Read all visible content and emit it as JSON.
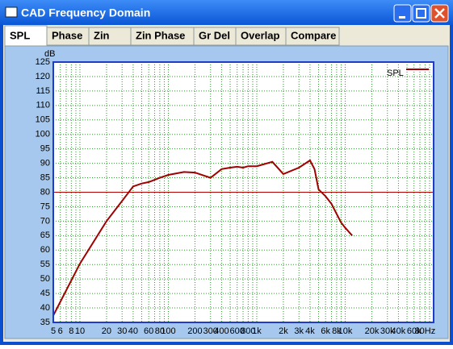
{
  "window": {
    "title": "CAD Frequency Domain",
    "tabs": [
      "SPL",
      "Phase",
      "Zin",
      "Zin Phase",
      "Gr Del",
      "Overlap",
      "Compare"
    ]
  },
  "chart_data": {
    "type": "line",
    "y_label": "dB",
    "x_scale": "log",
    "grid": true,
    "legend": "top-right",
    "xlim": [
      5,
      100000
    ],
    "ylim": [
      35,
      125
    ],
    "yticks": [
      35,
      40,
      45,
      50,
      55,
      60,
      65,
      70,
      75,
      80,
      85,
      90,
      95,
      100,
      105,
      110,
      115,
      120,
      125
    ],
    "xticks": [
      5,
      6,
      8,
      10,
      20,
      30,
      40,
      60,
      80,
      100,
      200,
      300,
      400,
      600,
      800,
      {
        "value": 1000,
        "label": "1k"
      },
      {
        "value": 2000,
        "label": "2k"
      },
      {
        "value": 3000,
        "label": "3k"
      },
      {
        "value": 4000,
        "label": "4k"
      },
      {
        "value": 6000,
        "label": "6k"
      },
      {
        "value": 8000,
        "label": "8k"
      },
      {
        "value": 10000,
        "label": "10k"
      },
      {
        "value": 20000,
        "label": "20k"
      },
      {
        "value": 30000,
        "label": "30k"
      },
      {
        "value": 40000,
        "label": "40k"
      },
      {
        "value": 60000,
        "label": "60k"
      },
      {
        "value": 80000,
        "label": "80Hz"
      }
    ],
    "x_minor_grid": [
      7,
      9,
      50,
      70,
      90,
      500,
      700,
      900,
      5000,
      7000,
      9000,
      50000,
      70000,
      90000
    ],
    "reference_line": {
      "value": 80,
      "color": "#b00000"
    },
    "x": [
      5,
      10,
      20,
      30,
      40,
      50,
      60,
      80,
      100,
      150,
      200,
      300,
      400,
      500,
      600,
      700,
      800,
      1000,
      1500,
      2000,
      3000,
      4000,
      4500,
      5000,
      6000,
      7000,
      8000,
      9000,
      10000,
      12000
    ],
    "series": [
      {
        "name": "SPL",
        "color": "#a00000",
        "values": [
          37.4,
          55.3,
          70,
          77,
          82,
          83,
          83.5,
          85,
          86,
          87,
          86.8,
          85,
          88,
          88.5,
          88.8,
          88.5,
          89,
          89,
          90.5,
          86.3,
          88.5,
          91,
          88,
          81,
          78.6,
          76,
          72.5,
          69.5,
          67.7,
          65
        ]
      }
    ]
  }
}
